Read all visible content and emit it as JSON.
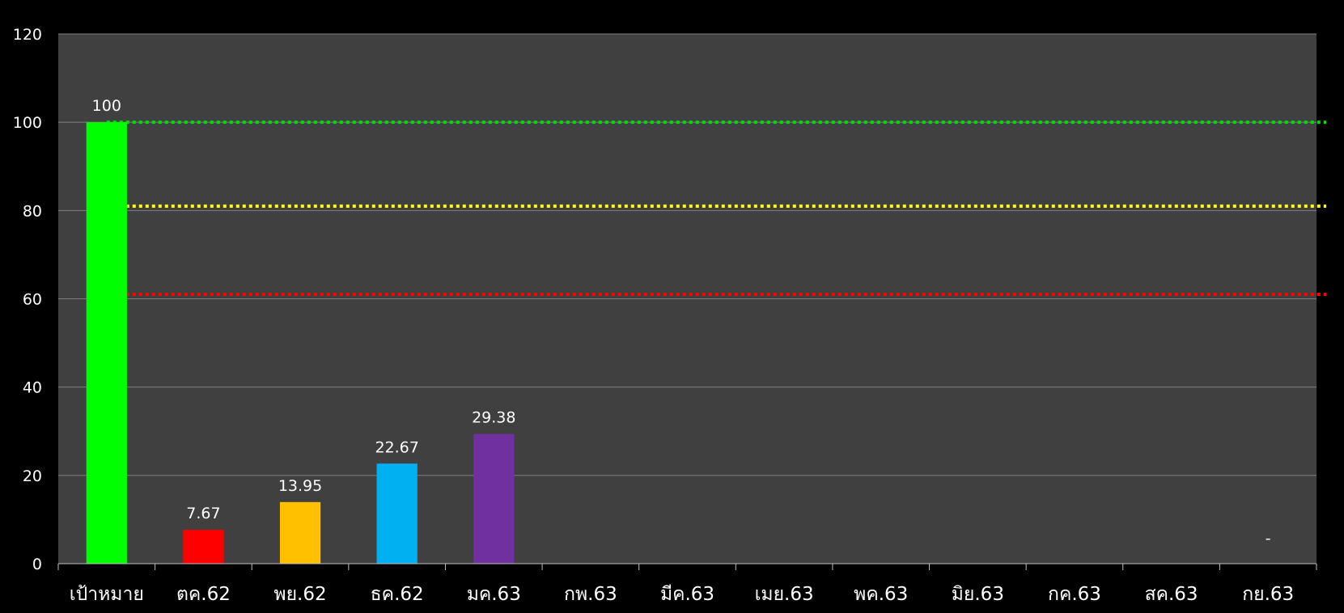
{
  "chart_data": {
    "type": "bar",
    "categories": [
      "เป้าหมาย",
      "ตค.62",
      "พย.62",
      "ธค.62",
      "มค.63",
      "กพ.63",
      "มีค.63",
      "เมย.63",
      "พค.63",
      "มิย.63",
      "กค.63",
      "สค.63",
      "กย.63"
    ],
    "values": [
      100,
      7.67,
      13.95,
      22.67,
      29.38,
      null,
      null,
      null,
      null,
      null,
      null,
      null,
      null
    ],
    "data_labels": [
      "100",
      "7.67",
      "13.95",
      "22.67",
      "29.38",
      "",
      "",
      "",
      "",
      "",
      "",
      "",
      "-"
    ],
    "bar_colors": [
      "#00ff00",
      "#ff0000",
      "#ffc000",
      "#00b0f0",
      "#7030a0",
      "",
      "",
      "",
      "",
      "",
      "",
      "",
      ""
    ],
    "ylim": [
      0,
      120
    ],
    "yticks": [
      0,
      20,
      40,
      60,
      80,
      100,
      120
    ],
    "grid": true,
    "reference_lines": [
      {
        "value": 100,
        "color": "#00dd00",
        "style": "dotted"
      },
      {
        "value": 81,
        "color": "#ffff00",
        "style": "dotted"
      },
      {
        "value": 61,
        "color": "#ff0000",
        "style": "dotted"
      }
    ],
    "colors": {
      "background": "#000000",
      "plot_area": "#404040",
      "grid": "#7f7f7f",
      "text": "#ffffff"
    }
  }
}
